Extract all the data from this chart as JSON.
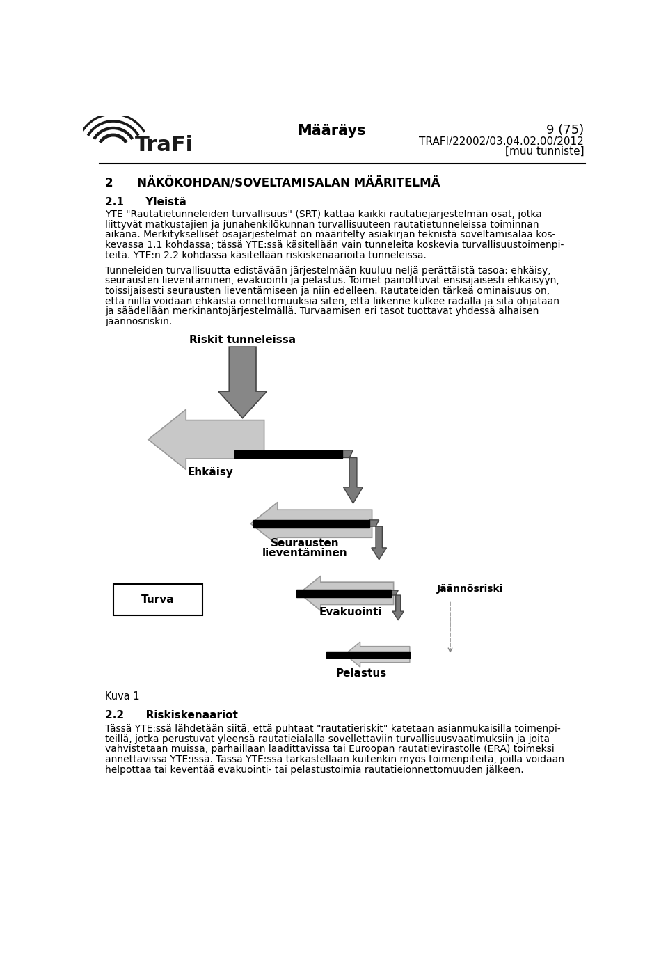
{
  "page_width": 9.6,
  "page_height": 13.92,
  "background": "#ffffff",
  "header_title": "Määräys",
  "header_pagenum": "9 (75)",
  "header_ref1": "TRAFI/22002/03.04.02.00/2012",
  "header_ref2": "[muu tunniste]",
  "sec2_title": "2      NÄKÖKOHDAN/SOVELTAMISALAN MÄÄRITELMÄ",
  "sec21_title": "2.1      Yleistä",
  "para1_lines": [
    "YTE \"Rautatietunneleiden turvallisuus\" (SRT) kattaa kaikki rautatiejärjestelmän osat, jotka",
    "liittyvät matkustajien ja junahenkilökunnan turvallisuuteen rautatietunneleissa toiminnan",
    "aikana. Merkitykselliset osajärjestelmät on määritelty asiakirjan teknistä soveltamisalaa kos-",
    "kevassa 1.1 kohdassa; tässä YTE:ssä käsitellään vain tunneleita koskevia turvallisuustoimenpi-",
    "teitä. YTE:n 2.2 kohdassa käsitellään riskiskenaarioita tunneleissa."
  ],
  "para2_lines": [
    "Tunneleiden turvallisuutta edistävään järjestelmään kuuluu neljä perättäistä tasoa: ehkäisy,",
    "seurausten lieventäminen, evakuointi ja pelastus. Toimet painottuvat ensisijaisesti ehkäisyyn,",
    "toissijaisesti seurausten lieventämiseen ja niin edelleen. Rautateiden tärkeä ominaisuus on,",
    "että niillä voidaan ehkäistä onnettomuuksia siten, että liikenne kulkee radalla ja sitä ohjataan",
    "ja säädellään merkinantojärjestelmällä. Turvaamisen eri tasot tuottavat yhdessä alhaisen",
    "jäännösriskin."
  ],
  "lbl_riskit": "Riskit tunneleissa",
  "lbl_ehkaisy": "Ehkäisy",
  "lbl_seurausten1": "Seurausten",
  "lbl_seurausten2": "lieventäminen",
  "lbl_turva": "Turva",
  "lbl_evakuointi": "Evakuointi",
  "lbl_jaannosriski": "Jäännösriski",
  "lbl_pelastus": "Pelastus",
  "figure_label": "Kuva 1",
  "sec22_title": "2.2      Riskiskenaariot",
  "para3_lines": [
    "Tässä YTE:ssä lähdetään siitä, että puhtaat \"rautatieriskit\" katetaan asianmukaisilla toimenpi-",
    "teillä, jotka perustuvat yleensä rautatieialalla sovellettaviin turvallisuusvaatimuksiin ja joita",
    "vahvistetaan muissa, parhaillaan laadittavissa tai Euroopan rautatievirastolle (ERA) toimeksi",
    "annettavissa YTE:issä. Tässä YTE:ssä tarkastellaan kuitenkin myös toimenpiteitä, joilla voidaan",
    "helpottaa tai keventää evakuointi- tai pelastustoimia rautatieionnettomuuden jälkeen."
  ]
}
